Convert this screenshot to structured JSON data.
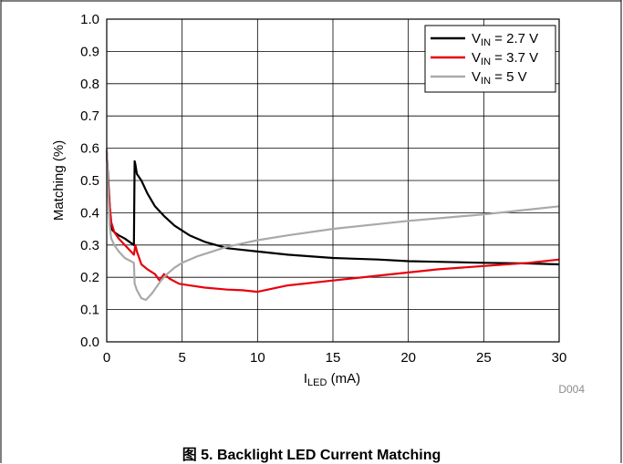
{
  "caption": "图 5. Backlight LED Current Matching",
  "chart_data": {
    "type": "line",
    "ylabel": "Matching (%)",
    "xlabel": "I_LED (mA)",
    "xlabel_main": "I",
    "xlabel_sub": "LED",
    "xlabel_rest": " (mA)",
    "code": "D004",
    "xlim": [
      0,
      30
    ],
    "ylim": [
      0,
      1.0
    ],
    "x_ticks": [
      "0",
      "5",
      "10",
      "15",
      "20",
      "25",
      "30"
    ],
    "y_ticks": [
      "0.0",
      "0.1",
      "0.2",
      "0.3",
      "0.4",
      "0.5",
      "0.6",
      "0.7",
      "0.8",
      "0.9",
      "1.0"
    ],
    "grid": true,
    "legend_position": "top-right",
    "series": [
      {
        "name": "V_IN = 2.7 V",
        "legend_main": "V",
        "legend_sub": "IN",
        "legend_rest": " = 2.7 V",
        "color": "#000000",
        "x": [
          0,
          0.1,
          0.2,
          0.3,
          0.5,
          0.8,
          1.2,
          1.8,
          1.85,
          1.9,
          2.0,
          2.3,
          2.7,
          3.2,
          3.8,
          4.5,
          5.5,
          6.5,
          8,
          10,
          12,
          15,
          18,
          20,
          22,
          25,
          28,
          30
        ],
        "y": [
          0.59,
          0.5,
          0.42,
          0.35,
          0.34,
          0.33,
          0.32,
          0.3,
          0.56,
          0.55,
          0.52,
          0.5,
          0.46,
          0.42,
          0.39,
          0.36,
          0.33,
          0.31,
          0.29,
          0.28,
          0.27,
          0.26,
          0.255,
          0.25,
          0.248,
          0.245,
          0.243,
          0.24
        ]
      },
      {
        "name": "V_IN = 3.7 V",
        "legend_main": "V",
        "legend_sub": "IN",
        "legend_rest": " = 3.7 V",
        "color": "#e8000b",
        "x": [
          0,
          0.1,
          0.2,
          0.3,
          0.5,
          0.8,
          1.2,
          1.8,
          1.9,
          2.0,
          2.3,
          2.7,
          3.2,
          3.5,
          3.8,
          4.2,
          4.8,
          5.5,
          6.5,
          8,
          9,
          10,
          11,
          12,
          15,
          18,
          20,
          22,
          25,
          28,
          30
        ],
        "y": [
          0.59,
          0.48,
          0.42,
          0.37,
          0.34,
          0.32,
          0.3,
          0.27,
          0.3,
          0.28,
          0.24,
          0.225,
          0.21,
          0.19,
          0.21,
          0.195,
          0.18,
          0.175,
          0.168,
          0.162,
          0.16,
          0.155,
          0.165,
          0.175,
          0.19,
          0.205,
          0.215,
          0.225,
          0.235,
          0.245,
          0.255
        ]
      },
      {
        "name": "V_IN = 5 V",
        "legend_main": "V",
        "legend_sub": "IN",
        "legend_rest": " = 5 V",
        "color": "#a9a9a9",
        "x": [
          0,
          0.1,
          0.2,
          0.3,
          0.5,
          0.8,
          1.2,
          1.8,
          1.85,
          2.0,
          2.3,
          2.6,
          3.0,
          3.3,
          3.6,
          4.0,
          4.5,
          5,
          6,
          7,
          8,
          10,
          12,
          15,
          18,
          20,
          25,
          28,
          30
        ],
        "y": [
          0.6,
          0.45,
          0.36,
          0.32,
          0.3,
          0.28,
          0.26,
          0.245,
          0.18,
          0.16,
          0.135,
          0.13,
          0.15,
          0.17,
          0.19,
          0.21,
          0.23,
          0.245,
          0.265,
          0.28,
          0.295,
          0.315,
          0.33,
          0.35,
          0.365,
          0.375,
          0.395,
          0.41,
          0.42
        ]
      }
    ]
  }
}
